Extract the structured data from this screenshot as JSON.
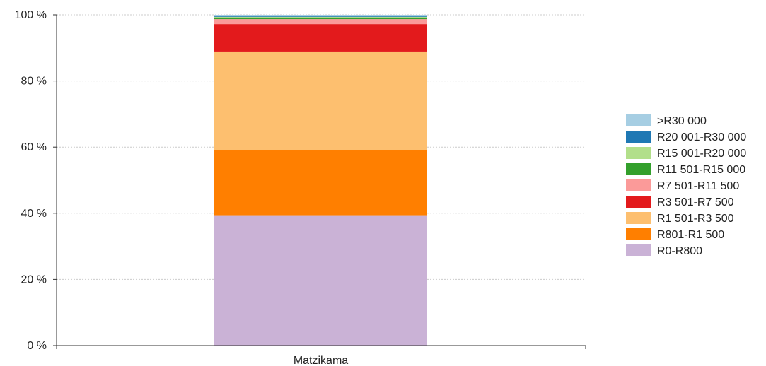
{
  "chart_data": {
    "type": "bar",
    "stacked": true,
    "percent": true,
    "categories": [
      "Matzikama"
    ],
    "ylim": [
      0,
      100
    ],
    "yticks": [
      0,
      20,
      40,
      60,
      80,
      100
    ],
    "ytick_labels": [
      "0 %",
      "20 %",
      "40 %",
      "60 %",
      "80 %",
      "100 %"
    ],
    "grid": true,
    "legend_position": "right",
    "series": [
      {
        "name": "R0-R800",
        "color": "#cab2d6",
        "values": [
          39.4
        ]
      },
      {
        "name": "R801-R1 500",
        "color": "#ff7f00",
        "values": [
          19.7
        ]
      },
      {
        "name": "R1 501-R3 500",
        "color": "#fdbf6f",
        "values": [
          29.8
        ]
      },
      {
        "name": "R3 501-R7 500",
        "color": "#e31a1c",
        "values": [
          8.3
        ]
      },
      {
        "name": "R7 501-R11 500",
        "color": "#fb9a99",
        "values": [
          1.5
        ]
      },
      {
        "name": "R11 501-R15 000",
        "color": "#33a02c",
        "values": [
          0.5
        ]
      },
      {
        "name": "R15 001-R20 000",
        "color": "#b2df8a",
        "values": [
          0.2
        ]
      },
      {
        "name": "R20 001-R30 000",
        "color": "#1f78b4",
        "values": [
          0.3
        ]
      },
      {
        "name": ">R30 000",
        "color": "#a6cee3",
        "values": [
          0.3
        ]
      }
    ]
  }
}
